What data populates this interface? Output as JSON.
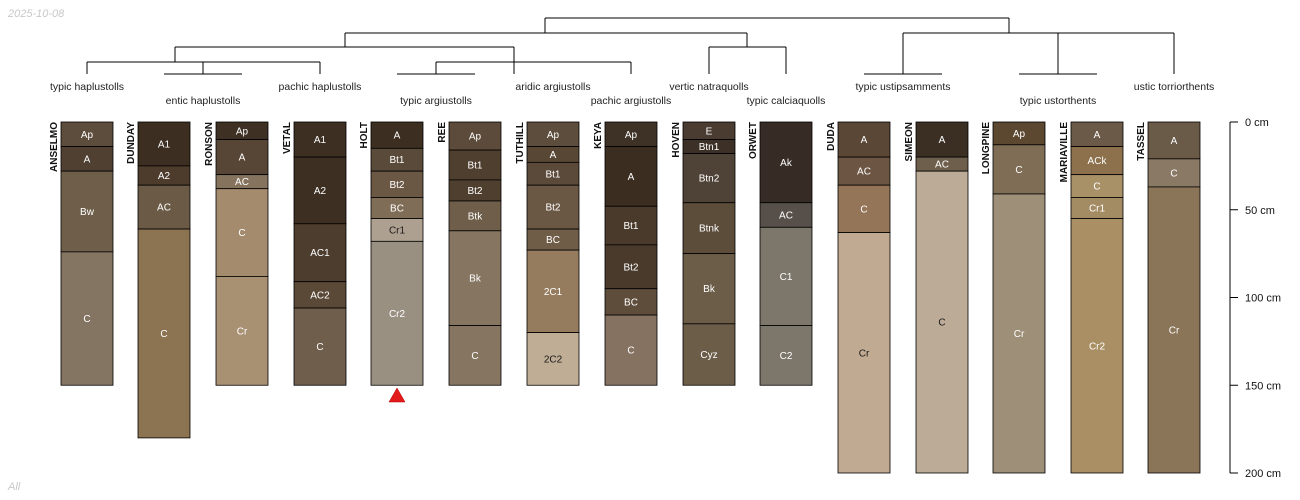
{
  "corner": {
    "date": "2025-10-08",
    "note": "All"
  },
  "depth_axis": {
    "unit": "cm",
    "max": 200,
    "ticks": [
      0,
      50,
      100,
      150,
      200
    ]
  },
  "taxa": [
    "typic haplustolls",
    "entic haplustolls",
    "pachic haplustolls",
    "typic argiustolls",
    "aridic argiustolls",
    "pachic argiustolls",
    "vertic natraquolls",
    "typic calciaquolls",
    "typic ustipsamments",
    "typic ustorthents",
    "ustic torriorthents"
  ],
  "profiles": [
    {
      "name": "ANSELMO",
      "horizons": [
        {
          "name": "Ap",
          "top": 0,
          "bottom": 14,
          "color": "#5d4d3c"
        },
        {
          "name": "A",
          "top": 14,
          "bottom": 28,
          "color": "#4f4031"
        },
        {
          "name": "Bw",
          "top": 28,
          "bottom": 74,
          "color": "#6e5e4a"
        },
        {
          "name": "C",
          "top": 74,
          "bottom": 150,
          "color": "#847462"
        }
      ]
    },
    {
      "name": "DUNDAY",
      "horizons": [
        {
          "name": "A1",
          "top": 0,
          "bottom": 25,
          "color": "#3c2e20"
        },
        {
          "name": "A2",
          "top": 25,
          "bottom": 36,
          "color": "#4d3c2c"
        },
        {
          "name": "AC",
          "top": 36,
          "bottom": 61,
          "color": "#6b5a45"
        },
        {
          "name": "C",
          "top": 61,
          "bottom": 180,
          "color": "#8c7352"
        }
      ]
    },
    {
      "name": "RONSON",
      "horizons": [
        {
          "name": "Ap",
          "top": 0,
          "bottom": 10,
          "color": "#3e3023"
        },
        {
          "name": "A",
          "top": 10,
          "bottom": 30,
          "color": "#574635"
        },
        {
          "name": "AC",
          "top": 30,
          "bottom": 38,
          "color": "#85735d"
        },
        {
          "name": "C",
          "top": 38,
          "bottom": 88,
          "color": "#a48b6d"
        },
        {
          "name": "Cr",
          "top": 88,
          "bottom": 150,
          "color": "#a89073"
        }
      ]
    },
    {
      "name": "VETAL",
      "horizons": [
        {
          "name": "A1",
          "top": 0,
          "bottom": 20,
          "color": "#3d2f22"
        },
        {
          "name": "A2",
          "top": 20,
          "bottom": 58,
          "color": "#3d2f22"
        },
        {
          "name": "AC1",
          "top": 58,
          "bottom": 91,
          "color": "#4d3d2e"
        },
        {
          "name": "AC2",
          "top": 91,
          "bottom": 106,
          "color": "#5a4936"
        },
        {
          "name": "C",
          "top": 106,
          "bottom": 150,
          "color": "#6e5e4b"
        }
      ]
    },
    {
      "name": "HOLT",
      "horizons": [
        {
          "name": "A",
          "top": 0,
          "bottom": 15,
          "color": "#3c2e20"
        },
        {
          "name": "Bt1",
          "top": 15,
          "bottom": 28,
          "color": "#5a4a39"
        },
        {
          "name": "Bt2",
          "top": 28,
          "bottom": 43,
          "color": "#6a5845"
        },
        {
          "name": "BC",
          "top": 43,
          "bottom": 55,
          "color": "#7f6d58"
        },
        {
          "name": "Cr1",
          "top": 55,
          "bottom": 68,
          "color": "#aea090"
        },
        {
          "name": "Cr2",
          "top": 68,
          "bottom": 150,
          "color": "#9a9082"
        }
      ]
    },
    {
      "name": "REE",
      "horizons": [
        {
          "name": "Ap",
          "top": 0,
          "bottom": 16,
          "color": "#5c4b3a"
        },
        {
          "name": "Bt1",
          "top": 16,
          "bottom": 33,
          "color": "#4f3f2f"
        },
        {
          "name": "Bt2",
          "top": 33,
          "bottom": 45,
          "color": "#4f3f2f"
        },
        {
          "name": "Btk",
          "top": 45,
          "bottom": 62,
          "color": "#6e5e4a"
        },
        {
          "name": "Bk",
          "top": 62,
          "bottom": 116,
          "color": "#857561"
        },
        {
          "name": "C",
          "top": 116,
          "bottom": 150,
          "color": "#857561"
        }
      ]
    },
    {
      "name": "TUTHILL",
      "horizons": [
        {
          "name": "Ap",
          "top": 0,
          "bottom": 14,
          "color": "#5d4d3c"
        },
        {
          "name": "A",
          "top": 14,
          "bottom": 23,
          "color": "#584735"
        },
        {
          "name": "Bt1",
          "top": 23,
          "bottom": 36,
          "color": "#5b4a39"
        },
        {
          "name": "Bt2",
          "top": 36,
          "bottom": 61,
          "color": "#6a5845"
        },
        {
          "name": "BC",
          "top": 61,
          "bottom": 73,
          "color": "#6f5d48"
        },
        {
          "name": "2C1",
          "top": 73,
          "bottom": 120,
          "color": "#967c5e"
        },
        {
          "name": "2C2",
          "top": 120,
          "bottom": 150,
          "color": "#c0ad96"
        }
      ]
    },
    {
      "name": "KEYA",
      "horizons": [
        {
          "name": "Ap",
          "top": 0,
          "bottom": 14,
          "color": "#3e3125"
        },
        {
          "name": "A",
          "top": 14,
          "bottom": 48,
          "color": "#3b2d20"
        },
        {
          "name": "Bt1",
          "top": 48,
          "bottom": 70,
          "color": "#4a3a2b"
        },
        {
          "name": "Bt2",
          "top": 70,
          "bottom": 95,
          "color": "#4a3a2b"
        },
        {
          "name": "BC",
          "top": 95,
          "bottom": 110,
          "color": "#5f4d3b"
        },
        {
          "name": "C",
          "top": 110,
          "bottom": 150,
          "color": "#857260"
        }
      ]
    },
    {
      "name": "HOVEN",
      "horizons": [
        {
          "name": "E",
          "top": 0,
          "bottom": 10,
          "color": "#4a3c30"
        },
        {
          "name": "Btn1",
          "top": 10,
          "bottom": 18,
          "color": "#3d3026"
        },
        {
          "name": "Btn2",
          "top": 18,
          "bottom": 46,
          "color": "#4f4236"
        },
        {
          "name": "Btnk",
          "top": 46,
          "bottom": 75,
          "color": "#5c4c3a"
        },
        {
          "name": "Bk",
          "top": 75,
          "bottom": 115,
          "color": "#6c5d48"
        },
        {
          "name": "Cyz",
          "top": 115,
          "bottom": 150,
          "color": "#6c5d48"
        }
      ]
    },
    {
      "name": "ORWET",
      "horizons": [
        {
          "name": "Ak",
          "top": 0,
          "bottom": 46,
          "color": "#372c25"
        },
        {
          "name": "AC",
          "top": 46,
          "bottom": 60,
          "color": "#57504a"
        },
        {
          "name": "C1",
          "top": 60,
          "bottom": 116,
          "color": "#7c766b"
        },
        {
          "name": "C2",
          "top": 116,
          "bottom": 150,
          "color": "#7c766b"
        }
      ]
    },
    {
      "name": "DUDA",
      "horizons": [
        {
          "name": "A",
          "top": 0,
          "bottom": 20,
          "color": "#5a4735"
        },
        {
          "name": "AC",
          "top": 20,
          "bottom": 36,
          "color": "#6c5643"
        },
        {
          "name": "C",
          "top": 36,
          "bottom": 63,
          "color": "#947558"
        },
        {
          "name": "Cr",
          "top": 63,
          "bottom": 200,
          "color": "#c0aa91"
        }
      ]
    },
    {
      "name": "SIMEON",
      "horizons": [
        {
          "name": "A",
          "top": 0,
          "bottom": 20,
          "color": "#3b2f23"
        },
        {
          "name": "AC",
          "top": 20,
          "bottom": 28,
          "color": "#6e5e4c"
        },
        {
          "name": "C",
          "top": 28,
          "bottom": 200,
          "color": "#bcab96"
        }
      ]
    },
    {
      "name": "LONGPINE",
      "horizons": [
        {
          "name": "Ap",
          "top": 0,
          "bottom": 13,
          "color": "#5c4731"
        },
        {
          "name": "C",
          "top": 13,
          "bottom": 41,
          "color": "#7f6d55"
        },
        {
          "name": "Cr",
          "top": 41,
          "bottom": 200,
          "color": "#9d8f78"
        }
      ]
    },
    {
      "name": "MARIAVILLE",
      "horizons": [
        {
          "name": "A",
          "top": 0,
          "bottom": 14,
          "color": "#6b5a47"
        },
        {
          "name": "ACk",
          "top": 14,
          "bottom": 30,
          "color": "#8c714c"
        },
        {
          "name": "C",
          "top": 30,
          "bottom": 43,
          "color": "#a89067"
        },
        {
          "name": "Cr1",
          "top": 43,
          "bottom": 55,
          "color": "#a38b63"
        },
        {
          "name": "Cr2",
          "top": 55,
          "bottom": 200,
          "color": "#a98f63"
        }
      ]
    },
    {
      "name": "TASSEL",
      "horizons": [
        {
          "name": "A",
          "top": 0,
          "bottom": 21,
          "color": "#6a5a48"
        },
        {
          "name": "C",
          "top": 21,
          "bottom": 37,
          "color": "#8a7965"
        },
        {
          "name": "Cr",
          "top": 37,
          "bottom": 200,
          "color": "#8a7559"
        }
      ]
    }
  ]
}
